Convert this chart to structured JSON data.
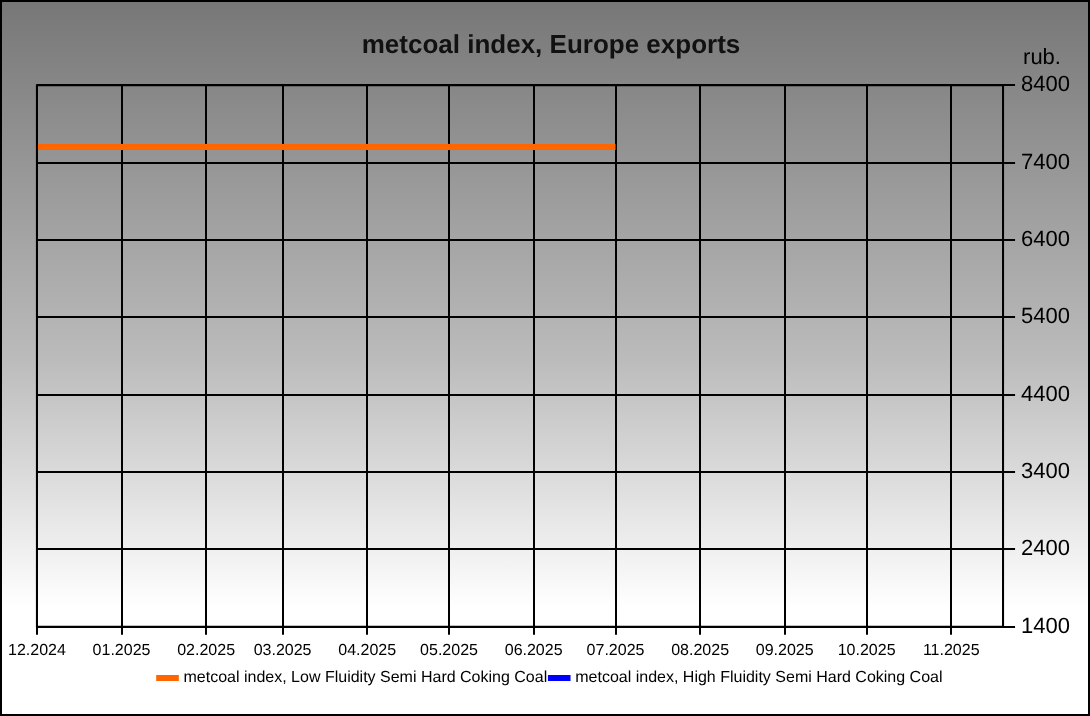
{
  "chart_data": {
    "type": "line",
    "title": "metcoal index, Europe exports",
    "ylabel": "rub.",
    "x": [
      "2024-12-01",
      "2025-01-01",
      "2025-02-01",
      "2025-03-01",
      "2025-04-01",
      "2025-05-01",
      "2025-06-01",
      "2025-07-01"
    ],
    "series": [
      {
        "name": "metcoal index, Low Fluidity Semi Hard Coking Coal",
        "color": "#ff6600",
        "values": [
          7600,
          7600,
          7600,
          7600,
          7600,
          7600,
          7600,
          7600
        ]
      },
      {
        "name": "metcoal index, High Fluidity Semi Hard Coking Coal",
        "color": "#0000ff",
        "values": [
          null,
          null,
          null,
          null,
          null,
          null,
          null,
          null
        ]
      }
    ],
    "xlim": [
      "2024-12-01",
      "2025-11-20"
    ],
    "xticks": [
      {
        "value": "2024-12-01",
        "label": "12.2024"
      },
      {
        "value": "2025-01-01",
        "label": "01.2025"
      },
      {
        "value": "2025-02-01",
        "label": "02.2025"
      },
      {
        "value": "2025-03-01",
        "label": "03.2025"
      },
      {
        "value": "2025-04-01",
        "label": "04.2025"
      },
      {
        "value": "2025-05-01",
        "label": "05.2025"
      },
      {
        "value": "2025-06-01",
        "label": "06.2025"
      },
      {
        "value": "2025-07-01",
        "label": "07.2025"
      },
      {
        "value": "2025-08-01",
        "label": "08.2025"
      },
      {
        "value": "2025-09-01",
        "label": "09.2025"
      },
      {
        "value": "2025-10-01",
        "label": "10.2025"
      },
      {
        "value": "2025-11-01",
        "label": "11.2025"
      }
    ],
    "ylim": [
      1400,
      8400
    ],
    "yticks": [
      1400,
      2400,
      3400,
      4400,
      5400,
      6400,
      7400,
      8400
    ],
    "grid": true,
    "legend": "bottom",
    "marker": "none",
    "line_style": "solid"
  }
}
